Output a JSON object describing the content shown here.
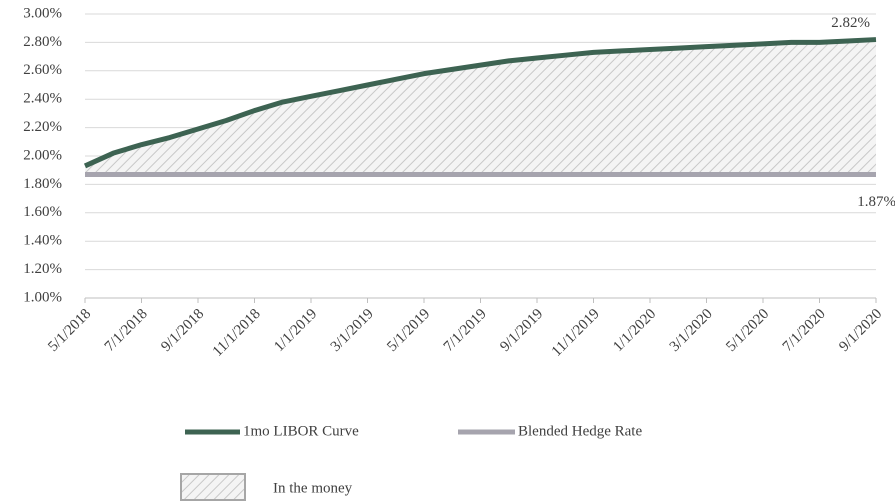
{
  "chart_data": {
    "type": "line",
    "categories": [
      "5/1/2018",
      null,
      "7/1/2018",
      null,
      "9/1/2018",
      null,
      "11/1/2018",
      null,
      "1/1/2019",
      null,
      "3/1/2019",
      null,
      "5/1/2019",
      null,
      "7/1/2019",
      null,
      "9/1/2019",
      null,
      "11/1/2019",
      null,
      "1/1/2020",
      null,
      "3/1/2020",
      null,
      "5/1/2020",
      null,
      "7/1/2020",
      null,
      "9/1/2020"
    ],
    "series": [
      {
        "name": "1mo LIBOR Curve",
        "color": "#3d6352",
        "values": [
          1.93,
          2.02,
          2.08,
          2.13,
          2.19,
          2.25,
          2.32,
          2.38,
          2.42,
          2.46,
          2.5,
          2.54,
          2.58,
          2.61,
          2.64,
          2.67,
          2.69,
          2.71,
          2.73,
          2.74,
          2.75,
          2.76,
          2.77,
          2.78,
          2.79,
          2.8,
          2.8,
          2.81,
          2.82
        ],
        "value_labels": [
          null,
          null,
          null,
          null,
          null,
          null,
          null,
          null,
          null,
          null,
          null,
          null,
          null,
          null,
          null,
          null,
          null,
          null,
          null,
          null,
          null,
          null,
          null,
          null,
          null,
          null,
          null,
          null,
          "2.82%"
        ]
      },
      {
        "name": "Blended Hedge Rate",
        "color": "#a6a4ae",
        "values": [
          1.87,
          1.87,
          1.87,
          1.87,
          1.87,
          1.87,
          1.87,
          1.87,
          1.87,
          1.87,
          1.87,
          1.87,
          1.87,
          1.87,
          1.87,
          1.87,
          1.87,
          1.87,
          1.87,
          1.87,
          1.87,
          1.87,
          1.87,
          1.87,
          1.87,
          1.87,
          1.87,
          1.87,
          1.87
        ],
        "value_labels": [
          null,
          null,
          null,
          null,
          null,
          null,
          null,
          null,
          null,
          null,
          null,
          null,
          null,
          null,
          null,
          null,
          null,
          null,
          null,
          null,
          null,
          null,
          null,
          null,
          null,
          null,
          null,
          null,
          "1.87%"
        ]
      }
    ],
    "area": {
      "name": "In the money",
      "color": "#c8c8c8"
    },
    "ylim": [
      1.0,
      3.0
    ],
    "yticks": [
      {
        "value": 1.0,
        "label": "1.00%"
      },
      {
        "value": 1.2,
        "label": "1.20%"
      },
      {
        "value": 1.4,
        "label": "1.40%"
      },
      {
        "value": 1.6,
        "label": "1.60%"
      },
      {
        "value": 1.8,
        "label": "1.80%"
      },
      {
        "value": 2.0,
        "label": "2.00%"
      },
      {
        "value": 2.2,
        "label": "2.20%"
      },
      {
        "value": 2.4,
        "label": "2.40%"
      },
      {
        "value": 2.6,
        "label": "2.60%"
      },
      {
        "value": 2.8,
        "label": "2.80%"
      },
      {
        "value": 3.0,
        "label": "3.00%"
      }
    ],
    "grid": true
  }
}
